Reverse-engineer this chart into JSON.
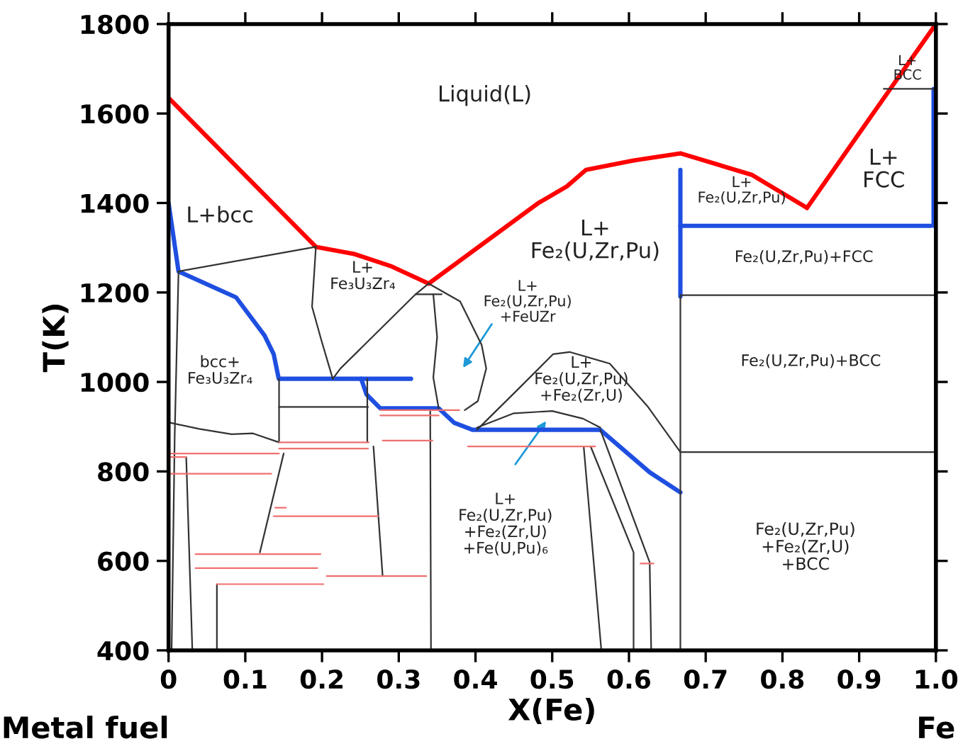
{
  "chart_data": {
    "type": "line",
    "xlabel": "X(Fe)",
    "ylabel": "T(K)",
    "xlim": [
      0,
      1
    ],
    "xticks": [
      0,
      0.1,
      0.2,
      0.3,
      0.4,
      0.5,
      0.6,
      0.7,
      0.8,
      0.9,
      {
        "value": 1,
        "label": "1.0"
      }
    ],
    "ylim": [
      400,
      1800
    ],
    "yticks": [
      400,
      600,
      800,
      1000,
      1200,
      1400,
      1600,
      1800
    ],
    "grid": false,
    "legend": false,
    "marker": "none",
    "line_style": "solid",
    "series": [
      {
        "color": "#ff0000",
        "x": [
          0,
          0.192
        ],
        "values": [
          1635,
          1302
        ]
      },
      {
        "color": "#ff0000",
        "x": [
          0.192,
          0.242,
          0.291,
          0.339
        ],
        "values": [
          1302,
          1286,
          1258,
          1220
        ]
      },
      {
        "color": "#ff0000",
        "x": [
          0.339,
          0.482,
          0.519,
          0.544,
          0.606,
          0.667,
          0.76,
          0.832
        ],
        "values": [
          1220,
          1400,
          1437,
          1474,
          1495,
          1511,
          1463,
          1389
        ]
      },
      {
        "color": "#ff0000",
        "x": [
          0.832,
          0.914,
          1.0
        ],
        "values": [
          1389,
          1590,
          1800
        ]
      },
      {
        "color": "#1f4fe0",
        "x": [
          0,
          0.013,
          0.088,
          0.125,
          0.137,
          0.1436,
          0.316
        ],
        "values": [
          1400,
          1247,
          1189,
          1104,
          1062,
          1007,
          1007
        ]
      },
      {
        "color": "#1f4fe0",
        "x": [
          0.251,
          0.258,
          0.276,
          0.352,
          0.372,
          0.396,
          0.5625,
          0.627,
          0.667
        ],
        "values": [
          1007,
          972,
          941,
          941,
          909,
          893,
          893,
          798,
          753
        ]
      },
      {
        "color": "#1f4fe0",
        "x": [
          0.667,
          0.667
        ],
        "values": [
          1474,
          1191
        ]
      },
      {
        "color": "#1f4fe0",
        "x": [
          0.667,
          0.993
        ],
        "values": [
          1349,
          1349
        ]
      },
      {
        "color": "#1f4fe0",
        "x": [
          0.997,
          0.997
        ],
        "values": [
          1349,
          1655
        ]
      },
      {
        "color": "#333333",
        "x": [
          0.932,
          1.0
        ],
        "values": [
          1655,
          1655
        ]
      },
      {
        "color": "#333333",
        "x": [
          0.667,
          1.0
        ],
        "values": [
          1194,
          1194
        ]
      },
      {
        "color": "#333333",
        "x": [
          0.667,
          1.0
        ],
        "values": [
          843,
          843
        ]
      },
      {
        "color": "#333333",
        "x": [
          0.667,
          0.667
        ],
        "values": [
          1191,
          400
        ]
      },
      {
        "color": "#333333",
        "x": [
          0.013,
          0.192
        ],
        "values": [
          1247,
          1302
        ]
      },
      {
        "color": "#333333",
        "x": [
          0.402,
          0.458,
          0.501,
          0.5226,
          0.575,
          0.624,
          0.667
        ],
        "values": [
          893,
          988,
          1062,
          1067,
          1041,
          946,
          843
        ]
      },
      {
        "color": "#333333",
        "x": [
          0.192,
          0.187,
          0.199,
          0.214
        ],
        "values": [
          1302,
          1168,
          1094,
          1007
        ]
      },
      {
        "color": "#333333",
        "x": [
          0.322,
          0.356
        ],
        "values": [
          1196,
          1196
        ]
      },
      {
        "color": "#333333",
        "x": [
          0.339,
          0.322,
          0.224,
          0.214
        ],
        "values": [
          1220,
          1196,
          1030,
          1007
        ]
      },
      {
        "color": "#333333",
        "x": [
          0.339,
          0.38,
          0.408,
          0.414,
          0.403,
          0.386
        ],
        "values": [
          1220,
          1180,
          1083,
          1030,
          957,
          937
        ]
      },
      {
        "color": "#333333",
        "x": [
          0.345,
          0.35,
          0.345,
          0.352
        ],
        "values": [
          1196,
          1100,
          1010,
          941
        ]
      },
      {
        "color": "#333333",
        "x": [
          0.341,
          0.342
        ],
        "values": [
          935,
          400
        ]
      },
      {
        "color": "#333333",
        "x": [
          0.013,
          0.008,
          0.004
        ],
        "values": [
          1247,
          880,
          400
        ]
      },
      {
        "color": "#333333",
        "x": [
          0.023,
          0.031
        ],
        "values": [
          832,
          400
        ]
      },
      {
        "color": "#333333",
        "x": [
          0.063,
          0.063
        ],
        "values": [
          548,
          400
        ]
      },
      {
        "color": "#333333",
        "x": [
          0.144,
          0.144
        ],
        "values": [
          1007,
          865
        ]
      },
      {
        "color": "#333333",
        "x": [
          0.15,
          0.119
        ],
        "values": [
          840,
          619
        ]
      },
      {
        "color": "#333333",
        "x": [
          0.259,
          0.259
        ],
        "values": [
          1007,
          865
        ]
      },
      {
        "color": "#333333",
        "x": [
          0.267,
          0.279
        ],
        "values": [
          856,
          566
        ]
      },
      {
        "color": "#333333",
        "x": [
          0.541,
          0.564
        ],
        "values": [
          856,
          400
        ]
      },
      {
        "color": "#333333",
        "x": [
          0.55,
          0.606,
          0.606
        ],
        "values": [
          856,
          619,
          400
        ]
      },
      {
        "color": "#333333",
        "x": [
          0.5627,
          0.627,
          0.629
        ],
        "values": [
          893,
          597,
          400
        ]
      },
      {
        "color": "#333333",
        "x": [
          0.402,
          0.45,
          0.5,
          0.54,
          0.5627
        ],
        "values": [
          898,
          930,
          935,
          918,
          898
        ]
      },
      {
        "color": "#333333",
        "x": [
          0.144,
          0.26
        ],
        "values": [
          944,
          944
        ]
      },
      {
        "color": "#333333",
        "x": [
          0.002,
          0.04,
          0.082,
          0.11,
          0.144
        ],
        "values": [
          909,
          895,
          883,
          885,
          865
        ]
      },
      {
        "color": "#f07070",
        "x": [
          0.276,
          0.379
        ],
        "values": [
          937,
          937
        ]
      },
      {
        "color": "#f07070",
        "x": [
          0.276,
          0.352
        ],
        "values": [
          925,
          925
        ]
      },
      {
        "color": "#f07070",
        "x": [
          0.279,
          0.344
        ],
        "values": [
          869,
          869
        ]
      },
      {
        "color": "#f07070",
        "x": [
          0.39,
          0.556
        ],
        "values": [
          856,
          856
        ]
      },
      {
        "color": "#f07070",
        "x": [
          0.144,
          0.261
        ],
        "values": [
          865,
          865
        ]
      },
      {
        "color": "#f07070",
        "x": [
          0.144,
          0.26
        ],
        "values": [
          851,
          851
        ]
      },
      {
        "color": "#f07070",
        "x": [
          0.002,
          0.144
        ],
        "values": [
          840,
          840
        ]
      },
      {
        "color": "#f07070",
        "x": [
          0.002,
          0.023
        ],
        "values": [
          832,
          832
        ]
      },
      {
        "color": "#f07070",
        "x": [
          0.002,
          0.134
        ],
        "values": [
          795,
          795
        ]
      },
      {
        "color": "#f07070",
        "x": [
          0.139,
          0.153
        ],
        "values": [
          719,
          719
        ]
      },
      {
        "color": "#f07070",
        "x": [
          0.137,
          0.273
        ],
        "values": [
          700,
          700
        ]
      },
      {
        "color": "#f07070",
        "x": [
          0.035,
          0.198
        ],
        "values": [
          615,
          615
        ]
      },
      {
        "color": "#f07070",
        "x": [
          0.035,
          0.194
        ],
        "values": [
          584,
          584
        ]
      },
      {
        "color": "#f07070",
        "x": [
          0.206,
          0.336
        ],
        "values": [
          566,
          566
        ]
      },
      {
        "color": "#f07070",
        "x": [
          0.063,
          0.202
        ],
        "values": [
          548,
          548
        ]
      },
      {
        "color": "#f07070",
        "x": [
          0.615,
          0.632
        ],
        "values": [
          594,
          594
        ]
      }
    ],
    "annotations": [
      "Liquid(L)",
      "L+bcc",
      "L+\nFe₃U₃Zr₄",
      "L+\nFe₂(U,Zr,Pu)",
      "L+\nFe₂(U,Zr,Pu)\n+FeUZr",
      "bcc+\nFe₃U₃Zr₄",
      "L+\nFe₂(U,Zr,Pu)\n+Fe₂(Zr,U)",
      "L+\nFe₂(U,Zr,Pu)\n+Fe₂(Zr,U)\n+Fe(U,Pu)₆",
      "L+\nFe₂(U,Zr,Pu)",
      "L+\nFCC",
      "L+\nBCC",
      "Fe₂(U,Zr,Pu)+FCC",
      "Fe₂(U,Zr,Pu)+BCC",
      "Fe₂(U,Zr,Pu)\n+Fe₂(Zr,U)\n+BCC",
      "Metal fuel",
      "Fe"
    ]
  }
}
